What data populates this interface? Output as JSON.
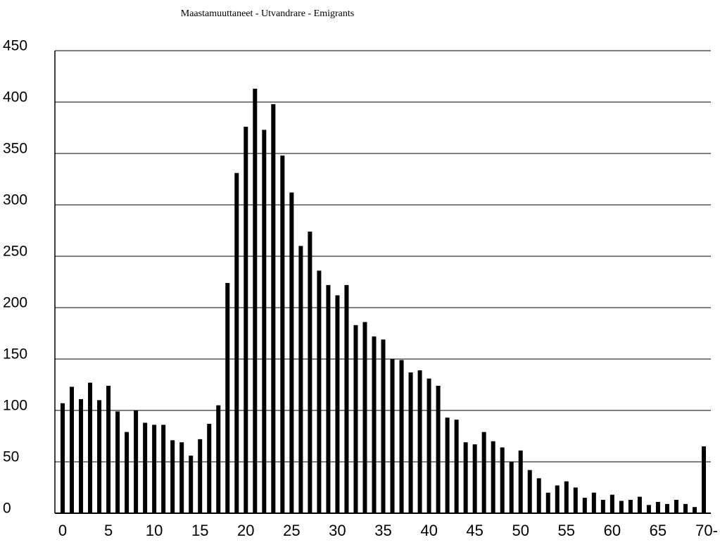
{
  "chart_data": {
    "type": "bar",
    "title": "Maastamuuttaneet - Utvandrare - Emigrants",
    "categories": [
      "0",
      null,
      null,
      null,
      null,
      "5",
      null,
      null,
      null,
      null,
      "10",
      null,
      null,
      null,
      null,
      "15",
      null,
      null,
      null,
      null,
      "20",
      null,
      null,
      null,
      null,
      "25",
      null,
      null,
      null,
      null,
      "30",
      null,
      null,
      null,
      null,
      "35",
      null,
      null,
      null,
      null,
      "40",
      null,
      null,
      null,
      null,
      "45",
      null,
      null,
      null,
      null,
      "50",
      null,
      null,
      null,
      null,
      "55",
      null,
      null,
      null,
      null,
      "60",
      null,
      null,
      null,
      null,
      "65",
      null,
      null,
      null,
      null,
      "70-"
    ],
    "values": [
      107,
      123,
      111,
      127,
      110,
      124,
      99,
      79,
      100,
      88,
      86,
      86,
      71,
      69,
      56,
      72,
      87,
      105,
      224,
      331,
      376,
      413,
      373,
      398,
      348,
      312,
      260,
      274,
      236,
      222,
      212,
      222,
      183,
      186,
      172,
      169,
      150,
      149,
      137,
      139,
      131,
      124,
      93,
      91,
      69,
      67,
      79,
      70,
      64,
      50,
      61,
      42,
      34,
      20,
      27,
      31,
      25,
      15,
      20,
      13,
      18,
      12,
      13,
      16,
      8,
      11,
      9,
      13,
      9,
      6,
      65
    ],
    "color": "#000000",
    "ylim": [
      0,
      450
    ],
    "yticks": [
      0,
      50,
      100,
      150,
      200,
      250,
      300,
      350,
      400,
      450
    ],
    "grid": true
  }
}
